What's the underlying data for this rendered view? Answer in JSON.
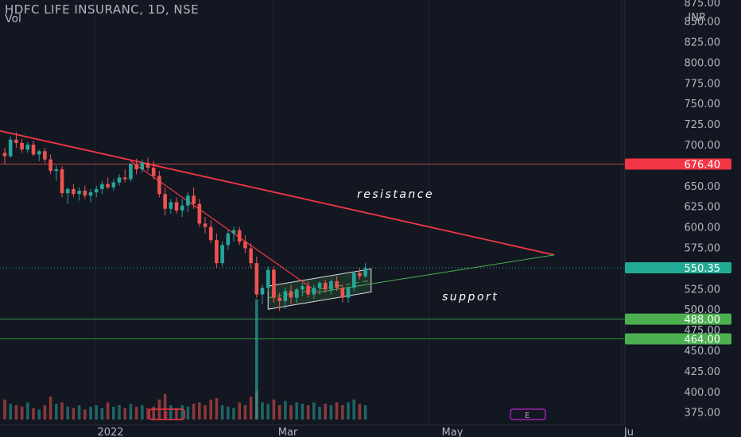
{
  "header": {
    "symbol_line": "HDFC LIFE INSURANC, 1D, NSE",
    "vol_label": "Vol"
  },
  "annotations": {
    "resistance": "resistance",
    "support": "support"
  },
  "price_axis": {
    "currency": "INR",
    "ticks": [
      "850.00",
      "825.00",
      "800.00",
      "775.00",
      "750.00",
      "725.00",
      "700.00",
      "650.00",
      "625.00",
      "600.00",
      "575.00",
      "525.00",
      "500.00",
      "475.00",
      "450.00",
      "425.00",
      "400.00",
      "375.00"
    ],
    "top_partial": "875.00"
  },
  "time_axis": {
    "labels": [
      "2022",
      "Mar",
      "May",
      "Ju"
    ]
  },
  "price_badges": {
    "resistance_level": "676.40",
    "last_price": "550.35",
    "level_488": "488.00",
    "level_464": "464.00"
  },
  "event_markers": {
    "earnings_1": "E",
    "earnings_2": "E"
  },
  "colors": {
    "background": "#131722",
    "up": "#26a69a",
    "down": "#ef5350",
    "trendline": "#f23645",
    "support_line": "#4caf50",
    "badge_red": "#f23645",
    "badge_teal": "#22ab94",
    "badge_green": "#4caf50",
    "axis_text": "#b2b5be",
    "earnings_red": "#f23645",
    "earnings_purple": "#9c27b0"
  },
  "chart_data": {
    "type": "candlestick",
    "title": "HDFC LIFE INSURANC, 1D, NSE",
    "ylabel": "INR",
    "ylim": [
      362,
      880
    ],
    "horizontal_levels": [
      676.4,
      488.0,
      464.0
    ],
    "last_price": 550.35,
    "ohlc": [
      [
        690,
        696,
        676,
        686
      ],
      [
        686,
        710,
        684,
        706
      ],
      [
        706,
        715,
        696,
        702
      ],
      [
        702,
        707,
        690,
        694
      ],
      [
        694,
        703,
        690,
        700
      ],
      [
        700,
        705,
        686,
        688
      ],
      [
        688,
        694,
        680,
        692
      ],
      [
        692,
        696,
        678,
        682
      ],
      [
        682,
        688,
        664,
        668
      ],
      [
        668,
        675,
        656,
        670
      ],
      [
        670,
        674,
        636,
        641
      ],
      [
        641,
        648,
        628,
        646
      ],
      [
        646,
        652,
        636,
        640
      ],
      [
        640,
        648,
        632,
        644
      ],
      [
        644,
        650,
        634,
        638
      ],
      [
        638,
        646,
        630,
        642
      ],
      [
        642,
        650,
        636,
        646
      ],
      [
        646,
        656,
        640,
        652
      ],
      [
        652,
        660,
        646,
        648
      ],
      [
        648,
        658,
        644,
        654
      ],
      [
        654,
        664,
        650,
        660
      ],
      [
        660,
        670,
        654,
        658
      ],
      [
        658,
        678,
        655,
        676
      ],
      [
        676,
        683,
        664,
        670
      ],
      [
        670,
        682,
        666,
        678
      ],
      [
        678,
        684,
        668,
        672
      ],
      [
        672,
        680,
        658,
        662
      ],
      [
        662,
        668,
        636,
        640
      ],
      [
        640,
        648,
        614,
        622
      ],
      [
        622,
        634,
        616,
        630
      ],
      [
        630,
        636,
        616,
        620
      ],
      [
        620,
        634,
        612,
        626
      ],
      [
        626,
        642,
        618,
        638
      ],
      [
        638,
        648,
        622,
        628
      ],
      [
        628,
        634,
        600,
        604
      ],
      [
        604,
        612,
        592,
        600
      ],
      [
        600,
        608,
        580,
        584
      ],
      [
        584,
        592,
        550,
        556
      ],
      [
        556,
        582,
        552,
        578
      ],
      [
        578,
        596,
        572,
        592
      ],
      [
        592,
        600,
        582,
        596
      ],
      [
        596,
        600,
        578,
        582
      ],
      [
        582,
        590,
        568,
        574
      ],
      [
        574,
        580,
        550,
        556
      ],
      [
        556,
        564,
        514,
        518
      ],
      [
        518,
        530,
        506,
        526
      ],
      [
        526,
        552,
        522,
        548
      ],
      [
        548,
        552,
        508,
        514
      ],
      [
        514,
        520,
        498,
        510
      ],
      [
        510,
        526,
        500,
        522
      ],
      [
        522,
        530,
        506,
        514
      ],
      [
        514,
        526,
        508,
        524
      ],
      [
        524,
        532,
        516,
        528
      ],
      [
        528,
        534,
        514,
        518
      ],
      [
        518,
        530,
        512,
        526
      ],
      [
        526,
        534,
        518,
        532
      ],
      [
        532,
        536,
        520,
        524
      ],
      [
        524,
        536,
        518,
        534
      ],
      [
        534,
        540,
        522,
        526
      ],
      [
        526,
        530,
        508,
        514
      ],
      [
        514,
        528,
        508,
        526
      ],
      [
        526,
        546,
        522,
        544
      ],
      [
        544,
        550,
        536,
        540
      ],
      [
        540,
        556,
        538,
        550
      ]
    ],
    "volume": [
      0.7,
      0.55,
      0.5,
      0.45,
      0.6,
      0.4,
      0.35,
      0.5,
      0.8,
      0.55,
      0.6,
      0.45,
      0.4,
      0.5,
      0.35,
      0.45,
      0.5,
      0.4,
      0.6,
      0.45,
      0.5,
      0.4,
      0.55,
      0.45,
      0.5,
      0.4,
      0.45,
      0.7,
      0.9,
      0.5,
      0.4,
      0.5,
      0.45,
      0.55,
      0.6,
      0.5,
      0.7,
      0.75,
      0.5,
      0.45,
      0.4,
      0.6,
      0.5,
      0.8,
      1.0,
      0.6,
      0.55,
      0.7,
      0.5,
      0.65,
      0.5,
      0.6,
      0.55,
      0.5,
      0.6,
      0.45,
      0.55,
      0.5,
      0.6,
      0.5,
      0.6,
      0.7,
      0.55,
      0.5
    ],
    "volume_spike": {
      "bar": 44,
      "ratio": 7.0
    },
    "resistance_line": {
      "from": [
        -1,
        717
      ],
      "to": [
        96,
        566
      ]
    },
    "secondary_resistance": {
      "from": [
        22,
        680
      ],
      "to": [
        55,
        519
      ]
    },
    "support_line": {
      "from": [
        55,
        521
      ],
      "to": [
        96,
        566
      ]
    },
    "channel": {
      "lower": [
        [
          46,
          500
        ],
        [
          64,
          521
        ]
      ],
      "upper": [
        [
          46,
          528
        ],
        [
          64,
          549
        ]
      ]
    }
  }
}
